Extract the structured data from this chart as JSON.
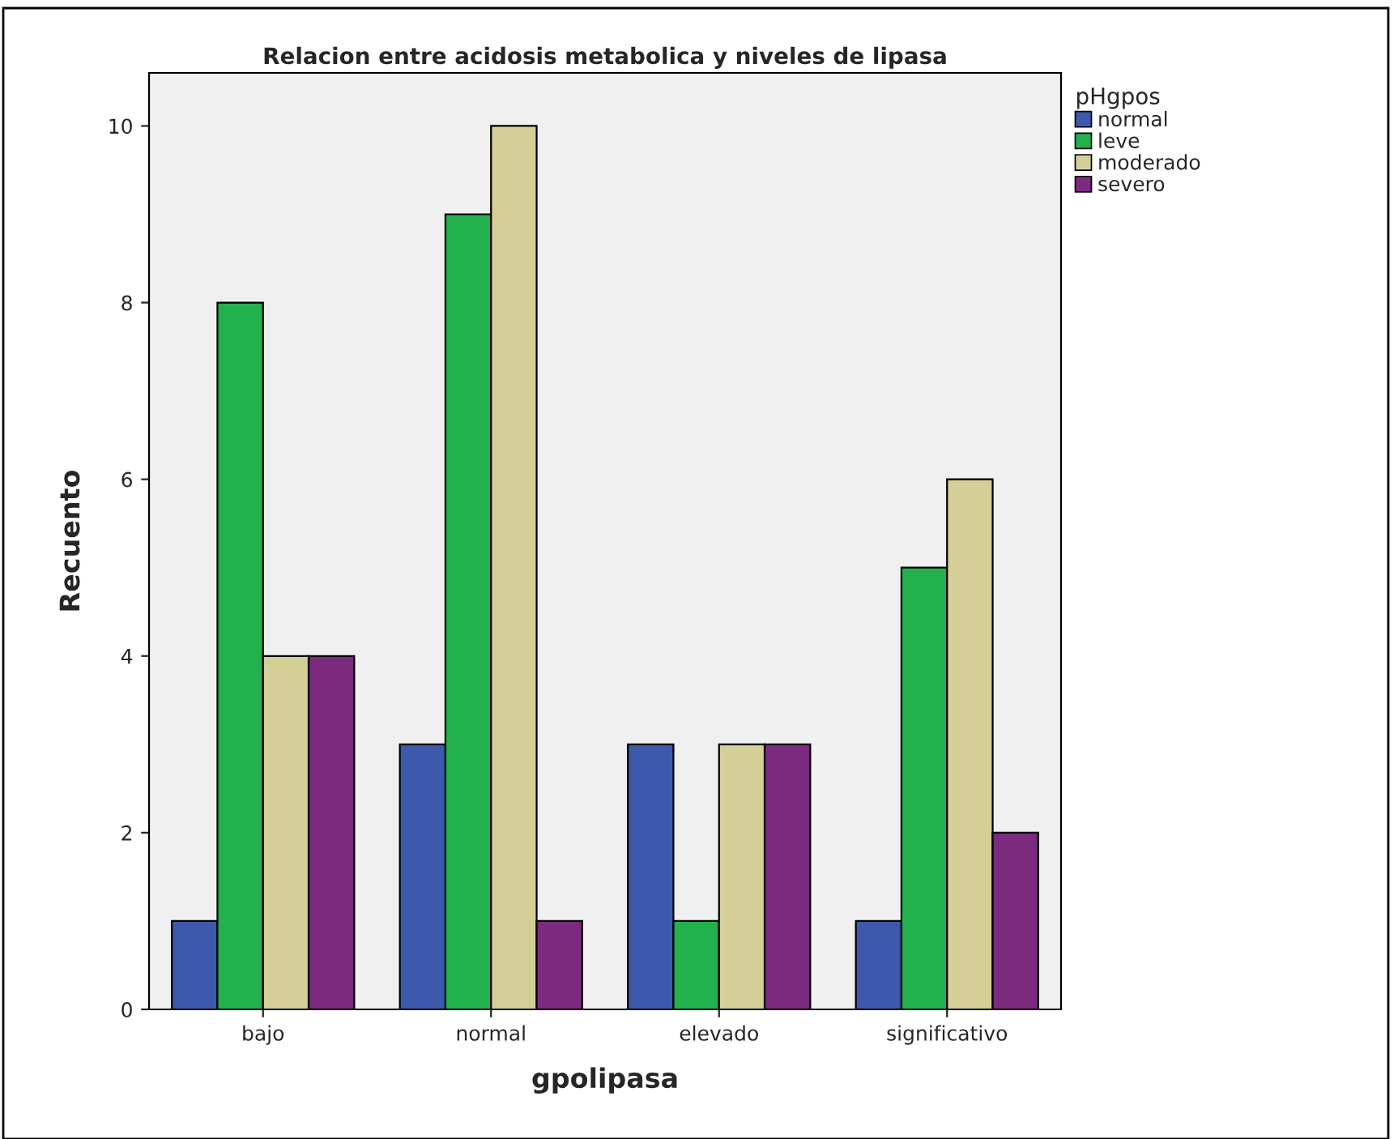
{
  "chart_data": {
    "type": "bar",
    "title": "Relacion entre acidosis metabolica y niveles de lipasa",
    "xlabel": "gpolipasa",
    "ylabel": "Recuento",
    "legend_title": "pHgpos",
    "categories": [
      "bajo",
      "normal",
      "elevado",
      "significativo"
    ],
    "series": [
      {
        "name": "normal",
        "color": "#3e58ac",
        "values": [
          1,
          3,
          3,
          1
        ]
      },
      {
        "name": "leve",
        "color": "#22b14c",
        "values": [
          8,
          9,
          1,
          5
        ]
      },
      {
        "name": "moderado",
        "color": "#d4cf97",
        "values": [
          4,
          10,
          3,
          6
        ]
      },
      {
        "name": "severo",
        "color": "#7b2a7e",
        "values": [
          4,
          1,
          3,
          2
        ]
      }
    ],
    "ylim": [
      0,
      10.6
    ],
    "yticks": [
      0,
      2,
      4,
      6,
      8,
      10
    ],
    "grid": false,
    "legend": "top right"
  }
}
